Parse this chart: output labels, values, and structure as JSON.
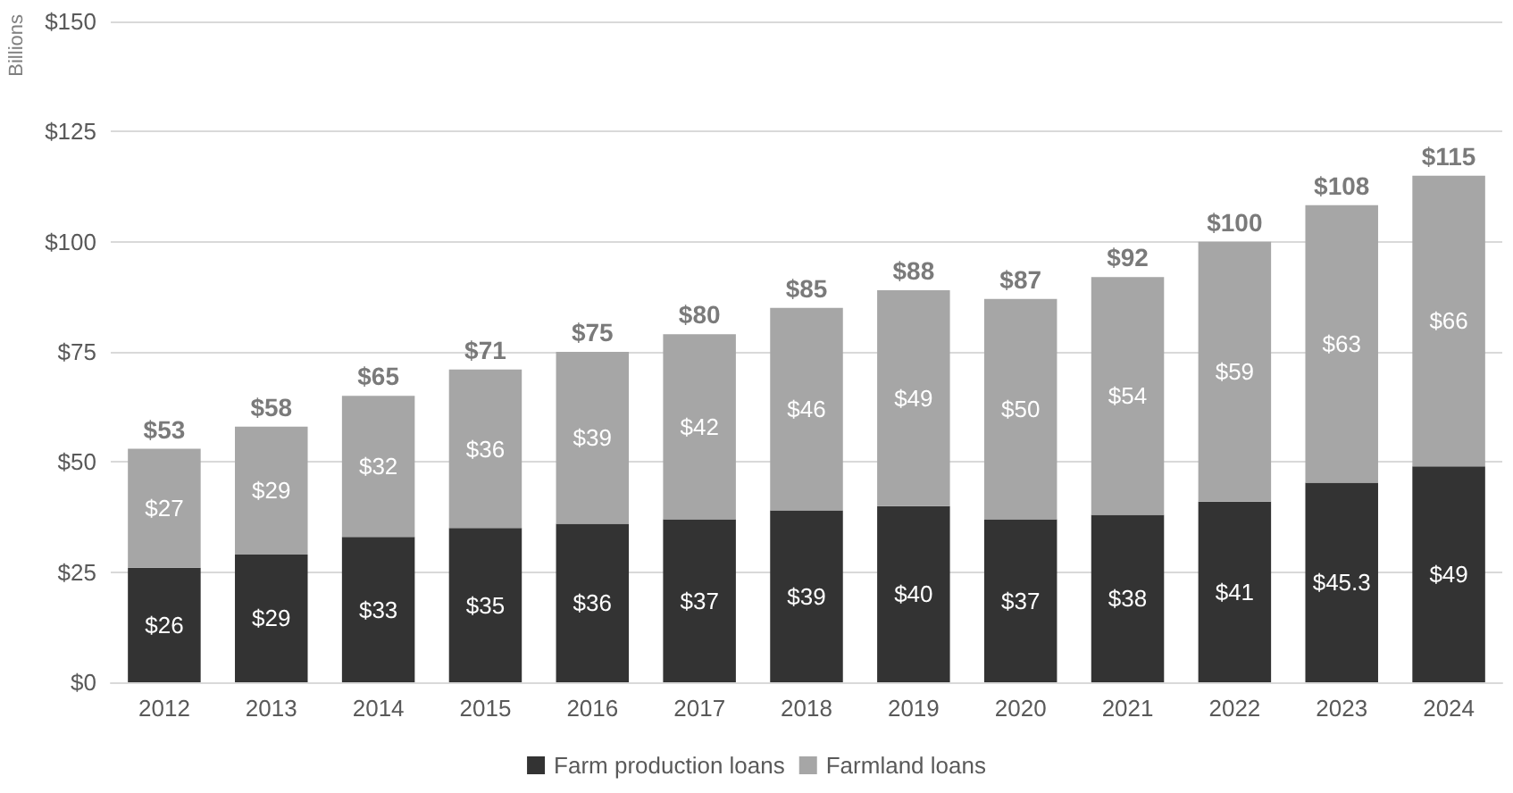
{
  "chart_data": {
    "type": "bar",
    "stacked": true,
    "ylabel": "Billions",
    "categories": [
      "2012",
      "2013",
      "2014",
      "2015",
      "2016",
      "2017",
      "2018",
      "2019",
      "2020",
      "2021",
      "2022",
      "2023",
      "2024"
    ],
    "series": [
      {
        "name": "Farm production loans",
        "color": "#333333",
        "values": [
          26,
          29,
          33,
          35,
          36,
          37,
          39,
          40,
          37,
          38,
          41,
          45.3,
          49
        ],
        "value_labels": [
          "$26",
          "$29",
          "$33",
          "$35",
          "$36",
          "$37",
          "$39",
          "$40",
          "$37",
          "$38",
          "$41",
          "$45.3",
          "$49"
        ]
      },
      {
        "name": "Farmland loans",
        "color": "#a6a6a6",
        "values": [
          27,
          29,
          32,
          36,
          39,
          42,
          46,
          49,
          50,
          54,
          59,
          63,
          66
        ],
        "value_labels": [
          "$27",
          "$29",
          "$32",
          "$36",
          "$39",
          "$42",
          "$46",
          "$49",
          "$50",
          "$54",
          "$59",
          "$63",
          "$66"
        ]
      }
    ],
    "totals": [
      "$53",
      "$58",
      "$65",
      "$71",
      "$75",
      "$80",
      "$85",
      "$88",
      "$87",
      "$92",
      "$100",
      "$108",
      "$115"
    ],
    "ylim": [
      0,
      150
    ],
    "yticks": [
      {
        "value": 0,
        "label": "$0"
      },
      {
        "value": 25,
        "label": "$25"
      },
      {
        "value": 50,
        "label": "$50"
      },
      {
        "value": 75,
        "label": "$75"
      },
      {
        "value": 100,
        "label": "$100"
      },
      {
        "value": 125,
        "label": "$125"
      },
      {
        "value": 150,
        "label": "$150"
      }
    ],
    "grid": "y",
    "legend": "bottom"
  }
}
